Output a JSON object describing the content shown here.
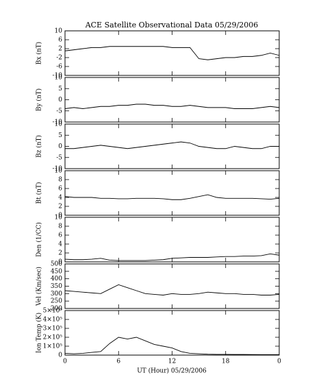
{
  "chart_data": [
    {
      "type": "line",
      "title": "ACE Satellite Observational Data   05/29/2006",
      "ylabel": "Bx (nT)",
      "color": "#000000",
      "x": [
        0,
        1,
        2,
        3,
        4,
        5,
        6,
        7,
        8,
        9,
        10,
        11,
        12,
        13,
        14,
        15,
        16,
        17,
        18,
        19,
        20,
        21,
        22,
        23,
        24
      ],
      "values": [
        1,
        1.5,
        2,
        2.5,
        2.5,
        3,
        3,
        3,
        3,
        3,
        3,
        3,
        2.5,
        2.5,
        2.5,
        -2.5,
        -3,
        -2.5,
        -2,
        -2,
        -1.5,
        -1.5,
        -1,
        0,
        -1
      ],
      "xlim": [
        0,
        24
      ],
      "ylim": [
        -10,
        10
      ],
      "yticks": [
        10,
        6,
        2,
        -2,
        -6,
        -10
      ]
    },
    {
      "type": "line",
      "ylabel": "By (nT)",
      "color": "#000000",
      "x": [
        0,
        1,
        2,
        3,
        4,
        5,
        6,
        7,
        8,
        9,
        10,
        11,
        12,
        13,
        14,
        15,
        16,
        17,
        18,
        19,
        20,
        21,
        22,
        23,
        24
      ],
      "values": [
        -4,
        -3.5,
        -4,
        -3.5,
        -3,
        -3,
        -2.5,
        -2.5,
        -2,
        -2,
        -2.5,
        -2.5,
        -3,
        -3,
        -2.5,
        -3,
        -3.5,
        -3.5,
        -3.5,
        -4,
        -4,
        -4,
        -3.5,
        -3,
        -3.5
      ],
      "xlim": [
        0,
        24
      ],
      "ylim": [
        -10,
        10
      ],
      "yticks": [
        10,
        5,
        0,
        -5,
        -10
      ]
    },
    {
      "type": "line",
      "ylabel": "Bz (nT)",
      "color": "#000000",
      "x": [
        0,
        1,
        2,
        3,
        4,
        5,
        6,
        7,
        8,
        9,
        10,
        11,
        12,
        13,
        14,
        15,
        16,
        17,
        18,
        19,
        20,
        21,
        22,
        23,
        24
      ],
      "values": [
        -1,
        -1,
        -0.5,
        0,
        0.5,
        0,
        -0.5,
        -1,
        -0.5,
        0,
        0.5,
        1,
        1.5,
        2,
        1.5,
        0,
        -0.5,
        -1,
        -1,
        0,
        -0.5,
        -1,
        -1,
        0,
        0
      ],
      "xlim": [
        0,
        24
      ],
      "ylim": [
        -10,
        10
      ],
      "yticks": [
        10,
        5,
        0,
        -5,
        -10
      ]
    },
    {
      "type": "line",
      "ylabel": "Bt (nT)",
      "color": "#000000",
      "x": [
        0,
        1,
        2,
        3,
        4,
        5,
        6,
        7,
        8,
        9,
        10,
        11,
        12,
        13,
        14,
        15,
        16,
        17,
        18,
        19,
        20,
        21,
        22,
        23,
        24
      ],
      "values": [
        4.2,
        4,
        4,
        4,
        3.8,
        3.8,
        3.7,
        3.7,
        3.8,
        3.8,
        3.8,
        3.7,
        3.5,
        3.5,
        3.8,
        4.2,
        4.6,
        4,
        3.8,
        3.8,
        3.8,
        3.8,
        3.7,
        3.6,
        3.8
      ],
      "xlim": [
        0,
        24
      ],
      "ylim": [
        0,
        10
      ],
      "yticks": [
        10,
        8,
        6,
        4,
        2,
        0
      ]
    },
    {
      "type": "line",
      "ylabel": "Den (1/CC)",
      "color": "#000000",
      "x": [
        0,
        1,
        2,
        3,
        4,
        5,
        6,
        7,
        8,
        9,
        10,
        11,
        12,
        13,
        14,
        15,
        16,
        17,
        18,
        19,
        20,
        21,
        22,
        23,
        24
      ],
      "values": [
        0.6,
        0.5,
        0.5,
        0.6,
        0.8,
        0.4,
        0.3,
        0.3,
        0.3,
        0.3,
        0.4,
        0.5,
        0.8,
        0.9,
        1,
        1,
        1,
        1.1,
        1.2,
        1.2,
        1.3,
        1.3,
        1.4,
        1.8,
        1.5
      ],
      "xlim": [
        0,
        24
      ],
      "ylim": [
        0,
        10
      ],
      "yticks": [
        10,
        8,
        6,
        4,
        2,
        0
      ]
    },
    {
      "type": "line",
      "ylabel": "Vel (Km/sec)",
      "color": "#000000",
      "x": [
        0,
        1,
        2,
        3,
        4,
        5,
        6,
        7,
        8,
        9,
        10,
        11,
        12,
        13,
        14,
        15,
        16,
        17,
        18,
        19,
        20,
        21,
        22,
        23,
        24
      ],
      "values": [
        320,
        315,
        310,
        305,
        300,
        330,
        360,
        340,
        320,
        300,
        295,
        290,
        300,
        295,
        295,
        300,
        310,
        305,
        300,
        300,
        295,
        295,
        290,
        290,
        295
      ],
      "xlim": [
        0,
        24
      ],
      "ylim": [
        200,
        500
      ],
      "yticks": [
        500,
        450,
        400,
        350,
        300,
        250,
        200
      ]
    },
    {
      "type": "line",
      "ylabel": "Ion Temp (K)",
      "xlabel": "UT (Hour)   05/29/2006",
      "color": "#000000",
      "x": [
        0,
        1,
        2,
        3,
        4,
        5,
        6,
        7,
        8,
        9,
        10,
        11,
        12,
        13,
        14,
        15,
        16,
        17,
        18,
        19,
        20,
        21,
        22,
        23,
        24
      ],
      "values": [
        20000,
        15000,
        20000,
        30000,
        40000,
        130000,
        200000,
        180000,
        200000,
        160000,
        120000,
        100000,
        80000,
        40000,
        20000,
        15000,
        10000,
        8000,
        8000,
        7000,
        7000,
        6000,
        5000,
        5000,
        5000
      ],
      "xlim": [
        0,
        24
      ],
      "ylim": [
        0,
        500000
      ],
      "yticks": [
        {
          "value": 500000,
          "label": "5×10⁵"
        },
        {
          "value": 400000,
          "label": "4×10⁵"
        },
        {
          "value": 300000,
          "label": "3×10⁵"
        },
        {
          "value": 200000,
          "label": "2×10⁵"
        },
        {
          "value": 100000,
          "label": "1×10⁵"
        },
        0
      ],
      "xticks": [
        0,
        6,
        12,
        18,
        {
          "value": 24,
          "label": "0"
        }
      ]
    }
  ]
}
